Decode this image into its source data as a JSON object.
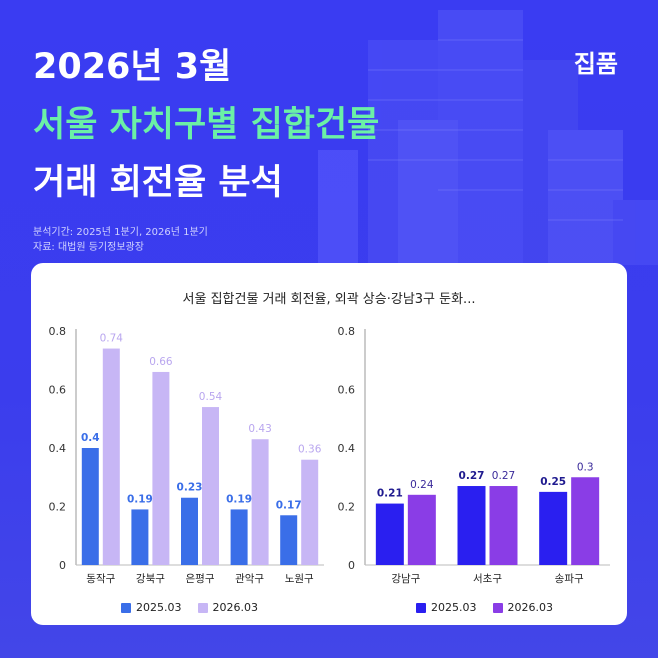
{
  "header": {
    "line1": "2026년 3월",
    "line2": "서울 자치구별 집합건물",
    "line3": "거래 회전율 분석",
    "brand": "집품",
    "period": "분석기간: 2025년 1분기, 2026년 1분기",
    "source": "자료: 대법원 등기정보광장"
  },
  "card": {
    "title": "서울 집합건물 거래 회전율, 외곽 상승·강남3구 둔화..."
  },
  "colors": {
    "left_2025": "#3a6ee8",
    "left_2026": "#c7b6f5",
    "right_2025": "#2a1ff0",
    "right_2026": "#8a3de6"
  },
  "chart_data": [
    {
      "type": "bar",
      "categories": [
        "동작구",
        "강북구",
        "은평구",
        "관악구",
        "노원구"
      ],
      "series": [
        {
          "name": "2025.03",
          "values": [
            0.4,
            0.19,
            0.23,
            0.19,
            0.17
          ]
        },
        {
          "name": "2026.03",
          "values": [
            0.74,
            0.66,
            0.54,
            0.43,
            0.36
          ]
        }
      ],
      "yticks": [
        "0",
        "0.2",
        "0.4",
        "0.6",
        "0.8"
      ],
      "ylim": [
        0,
        0.8
      ],
      "legend": "bottom"
    },
    {
      "type": "bar",
      "categories": [
        "강남구",
        "서초구",
        "송파구"
      ],
      "series": [
        {
          "name": "2025.03",
          "values": [
            0.21,
            0.27,
            0.25
          ]
        },
        {
          "name": "2026.03",
          "values": [
            0.24,
            0.27,
            0.3
          ]
        }
      ],
      "yticks": [
        "0",
        "0.2",
        "0.4",
        "0.6",
        "0.8"
      ],
      "ylim": [
        0,
        0.8
      ],
      "legend": "bottom"
    }
  ]
}
